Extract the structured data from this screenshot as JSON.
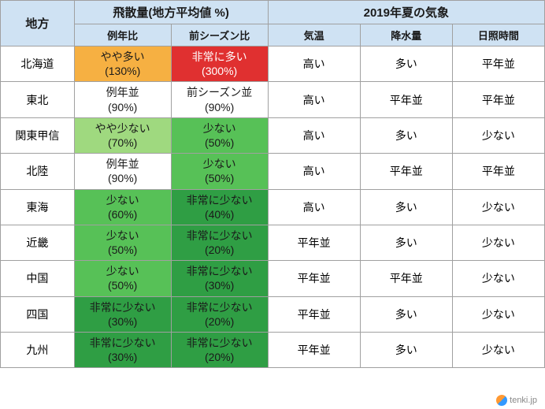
{
  "headers": {
    "region": "地方",
    "dispersal_group": "飛散量(地方平均値 %)",
    "dispersal_year": "例年比",
    "dispersal_season": "前シーズン比",
    "weather_group": "2019年夏の気象",
    "temperature": "気温",
    "precipitation": "降水量",
    "sunlight": "日照時間"
  },
  "colors": {
    "red": "#e03030",
    "orange": "#f6b042",
    "lightgreen": "#9fd97f",
    "green": "#57c157",
    "darkgreen": "#2f9e44",
    "white": "#ffffff",
    "black": "#1a1a1a"
  },
  "rows": [
    {
      "region": "北海道",
      "year": {
        "label": "やや多い",
        "pct": "(130%)",
        "bg": "orange",
        "fg": "black"
      },
      "season": {
        "label": "非常に多い",
        "pct": "(300%)",
        "bg": "red",
        "fg": "white"
      },
      "temp": "高い",
      "precip": "多い",
      "sun": "平年並"
    },
    {
      "region": "東北",
      "year": {
        "label": "例年並",
        "pct": "(90%)",
        "bg": "white",
        "fg": "black"
      },
      "season": {
        "label": "前シーズン並",
        "pct": "(90%)",
        "bg": "white",
        "fg": "black"
      },
      "temp": "高い",
      "precip": "平年並",
      "sun": "平年並"
    },
    {
      "region": "関東甲信",
      "year": {
        "label": "やや少ない",
        "pct": "(70%)",
        "bg": "lightgreen",
        "fg": "black"
      },
      "season": {
        "label": "少ない",
        "pct": "(50%)",
        "bg": "green",
        "fg": "black"
      },
      "temp": "高い",
      "precip": "多い",
      "sun": "少ない"
    },
    {
      "region": "北陸",
      "year": {
        "label": "例年並",
        "pct": "(90%)",
        "bg": "white",
        "fg": "black"
      },
      "season": {
        "label": "少ない",
        "pct": "(50%)",
        "bg": "green",
        "fg": "black"
      },
      "temp": "高い",
      "precip": "平年並",
      "sun": "平年並"
    },
    {
      "region": "東海",
      "year": {
        "label": "少ない",
        "pct": "(60%)",
        "bg": "green",
        "fg": "black"
      },
      "season": {
        "label": "非常に少ない",
        "pct": "(40%)",
        "bg": "darkgreen",
        "fg": "black"
      },
      "temp": "高い",
      "precip": "多い",
      "sun": "少ない"
    },
    {
      "region": "近畿",
      "year": {
        "label": "少ない",
        "pct": "(50%)",
        "bg": "green",
        "fg": "black"
      },
      "season": {
        "label": "非常に少ない",
        "pct": "(20%)",
        "bg": "darkgreen",
        "fg": "black"
      },
      "temp": "平年並",
      "precip": "多い",
      "sun": "少ない"
    },
    {
      "region": "中国",
      "year": {
        "label": "少ない",
        "pct": "(50%)",
        "bg": "green",
        "fg": "black"
      },
      "season": {
        "label": "非常に少ない",
        "pct": "(30%)",
        "bg": "darkgreen",
        "fg": "black"
      },
      "temp": "平年並",
      "precip": "平年並",
      "sun": "少ない"
    },
    {
      "region": "四国",
      "year": {
        "label": "非常に少ない",
        "pct": "(30%)",
        "bg": "darkgreen",
        "fg": "black"
      },
      "season": {
        "label": "非常に少ない",
        "pct": "(20%)",
        "bg": "darkgreen",
        "fg": "black"
      },
      "temp": "平年並",
      "precip": "多い",
      "sun": "少ない"
    },
    {
      "region": "九州",
      "year": {
        "label": "非常に少ない",
        "pct": "(30%)",
        "bg": "darkgreen",
        "fg": "black"
      },
      "season": {
        "label": "非常に少ない",
        "pct": "(20%)",
        "bg": "darkgreen",
        "fg": "black"
      },
      "temp": "平年並",
      "precip": "多い",
      "sun": "少ない"
    }
  ],
  "footer": "tenki.jp"
}
